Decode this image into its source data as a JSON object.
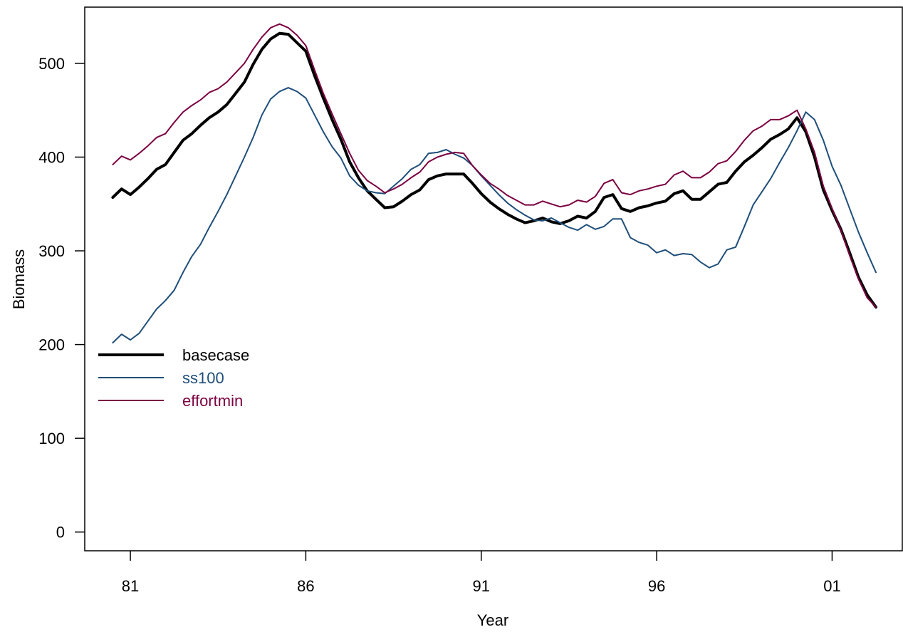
{
  "chart_data": {
    "type": "line",
    "title": "",
    "xlabel": "Year",
    "ylabel": "Biomass",
    "xlim": [
      1979.7,
      2003.0
    ],
    "ylim": [
      -20,
      560
    ],
    "x_ticks": [
      {
        "value": 1981,
        "label": "81"
      },
      {
        "value": 1986,
        "label": "86"
      },
      {
        "value": 1991,
        "label": "91"
      },
      {
        "value": 1996,
        "label": "96"
      },
      {
        "value": 2001,
        "label": "01"
      }
    ],
    "y_ticks": [
      {
        "value": 0,
        "label": "0"
      },
      {
        "value": 100,
        "label": "100"
      },
      {
        "value": 200,
        "label": "200"
      },
      {
        "value": 300,
        "label": "300"
      },
      {
        "value": 400,
        "label": "400"
      },
      {
        "value": 500,
        "label": "500"
      }
    ],
    "grid": false,
    "legend_position": "left",
    "x": [
      1980.5,
      1980.75,
      1981.0,
      1981.25,
      1981.5,
      1981.75,
      1982.0,
      1982.25,
      1982.5,
      1982.75,
      1983.0,
      1983.25,
      1983.5,
      1983.75,
      1984.0,
      1984.25,
      1984.5,
      1984.75,
      1985.0,
      1985.25,
      1985.5,
      1985.75,
      1986.0,
      1986.25,
      1986.5,
      1986.75,
      1987.0,
      1987.25,
      1987.5,
      1987.75,
      1988.0,
      1988.25,
      1988.5,
      1988.75,
      1989.0,
      1989.25,
      1989.5,
      1989.75,
      1990.0,
      1990.25,
      1990.5,
      1990.75,
      1991.0,
      1991.25,
      1991.5,
      1991.75,
      1992.0,
      1992.25,
      1992.5,
      1992.75,
      1993.0,
      1993.25,
      1993.5,
      1993.75,
      1994.0,
      1994.25,
      1994.5,
      1994.75,
      1995.0,
      1995.25,
      1995.5,
      1995.75,
      1996.0,
      1996.25,
      1996.5,
      1996.75,
      1997.0,
      1997.25,
      1997.5,
      1997.75,
      1998.0,
      1998.25,
      1998.5,
      1998.75,
      1999.0,
      1999.25,
      1999.5,
      1999.75,
      2000.0,
      2000.25,
      2000.5,
      2000.75,
      2001.0,
      2001.25,
      2001.5,
      2001.75,
      2002.0,
      2002.25
    ],
    "series": [
      {
        "name": "basecase",
        "color": "#000000",
        "width": 4,
        "values": [
          357,
          366,
          360,
          368,
          377,
          387,
          392,
          405,
          418,
          425,
          434,
          442,
          448,
          456,
          468,
          480,
          499,
          515,
          526,
          532,
          531,
          522,
          513,
          487,
          463,
          440,
          419,
          395,
          378,
          364,
          355,
          346,
          347,
          353,
          360,
          365,
          376,
          380,
          382,
          382,
          382,
          372,
          361,
          352,
          345,
          339,
          334,
          330,
          332,
          335,
          331,
          329,
          332,
          337,
          335,
          342,
          357,
          360,
          345,
          342,
          346,
          348,
          351,
          353,
          361,
          364,
          355,
          355,
          363,
          371,
          373,
          385,
          395,
          402,
          410,
          419,
          424,
          430,
          442,
          427,
          400,
          365,
          343,
          323,
          298,
          272,
          253,
          240
        ]
      },
      {
        "name": "ss100",
        "color": "#1f4e79",
        "width": 2,
        "values": [
          202,
          211,
          205,
          212,
          225,
          238,
          247,
          258,
          277,
          294,
          307,
          325,
          342,
          360,
          380,
          400,
          421,
          445,
          462,
          470,
          474,
          470,
          463,
          445,
          427,
          411,
          399,
          380,
          370,
          364,
          362,
          361,
          369,
          377,
          387,
          392,
          404,
          405,
          408,
          403,
          399,
          391,
          380,
          370,
          360,
          351,
          344,
          338,
          333,
          332,
          335,
          330,
          325,
          322,
          328,
          323,
          326,
          334,
          334,
          314,
          309,
          306,
          298,
          301,
          295,
          297,
          296,
          288,
          282,
          286,
          301,
          304,
          326,
          349,
          363,
          377,
          394,
          410,
          428,
          448,
          440,
          418,
          390,
          370,
          345,
          320,
          298,
          277
        ]
      },
      {
        "name": "effortmin",
        "color": "#7b0041",
        "width": 2,
        "values": [
          392,
          401,
          397,
          404,
          412,
          421,
          425,
          437,
          448,
          455,
          461,
          469,
          473,
          480,
          490,
          500,
          515,
          528,
          538,
          542,
          538,
          530,
          519,
          493,
          468,
          446,
          425,
          404,
          386,
          375,
          369,
          362,
          366,
          371,
          378,
          384,
          395,
          400,
          403,
          405,
          404,
          391,
          381,
          372,
          366,
          359,
          354,
          349,
          349,
          353,
          350,
          347,
          349,
          354,
          352,
          358,
          372,
          376,
          362,
          360,
          364,
          366,
          369,
          371,
          381,
          385,
          378,
          378,
          384,
          393,
          396,
          406,
          418,
          428,
          433,
          440,
          440,
          444,
          450,
          430,
          405,
          369,
          345,
          322,
          295,
          270,
          250,
          240
        ]
      }
    ]
  }
}
